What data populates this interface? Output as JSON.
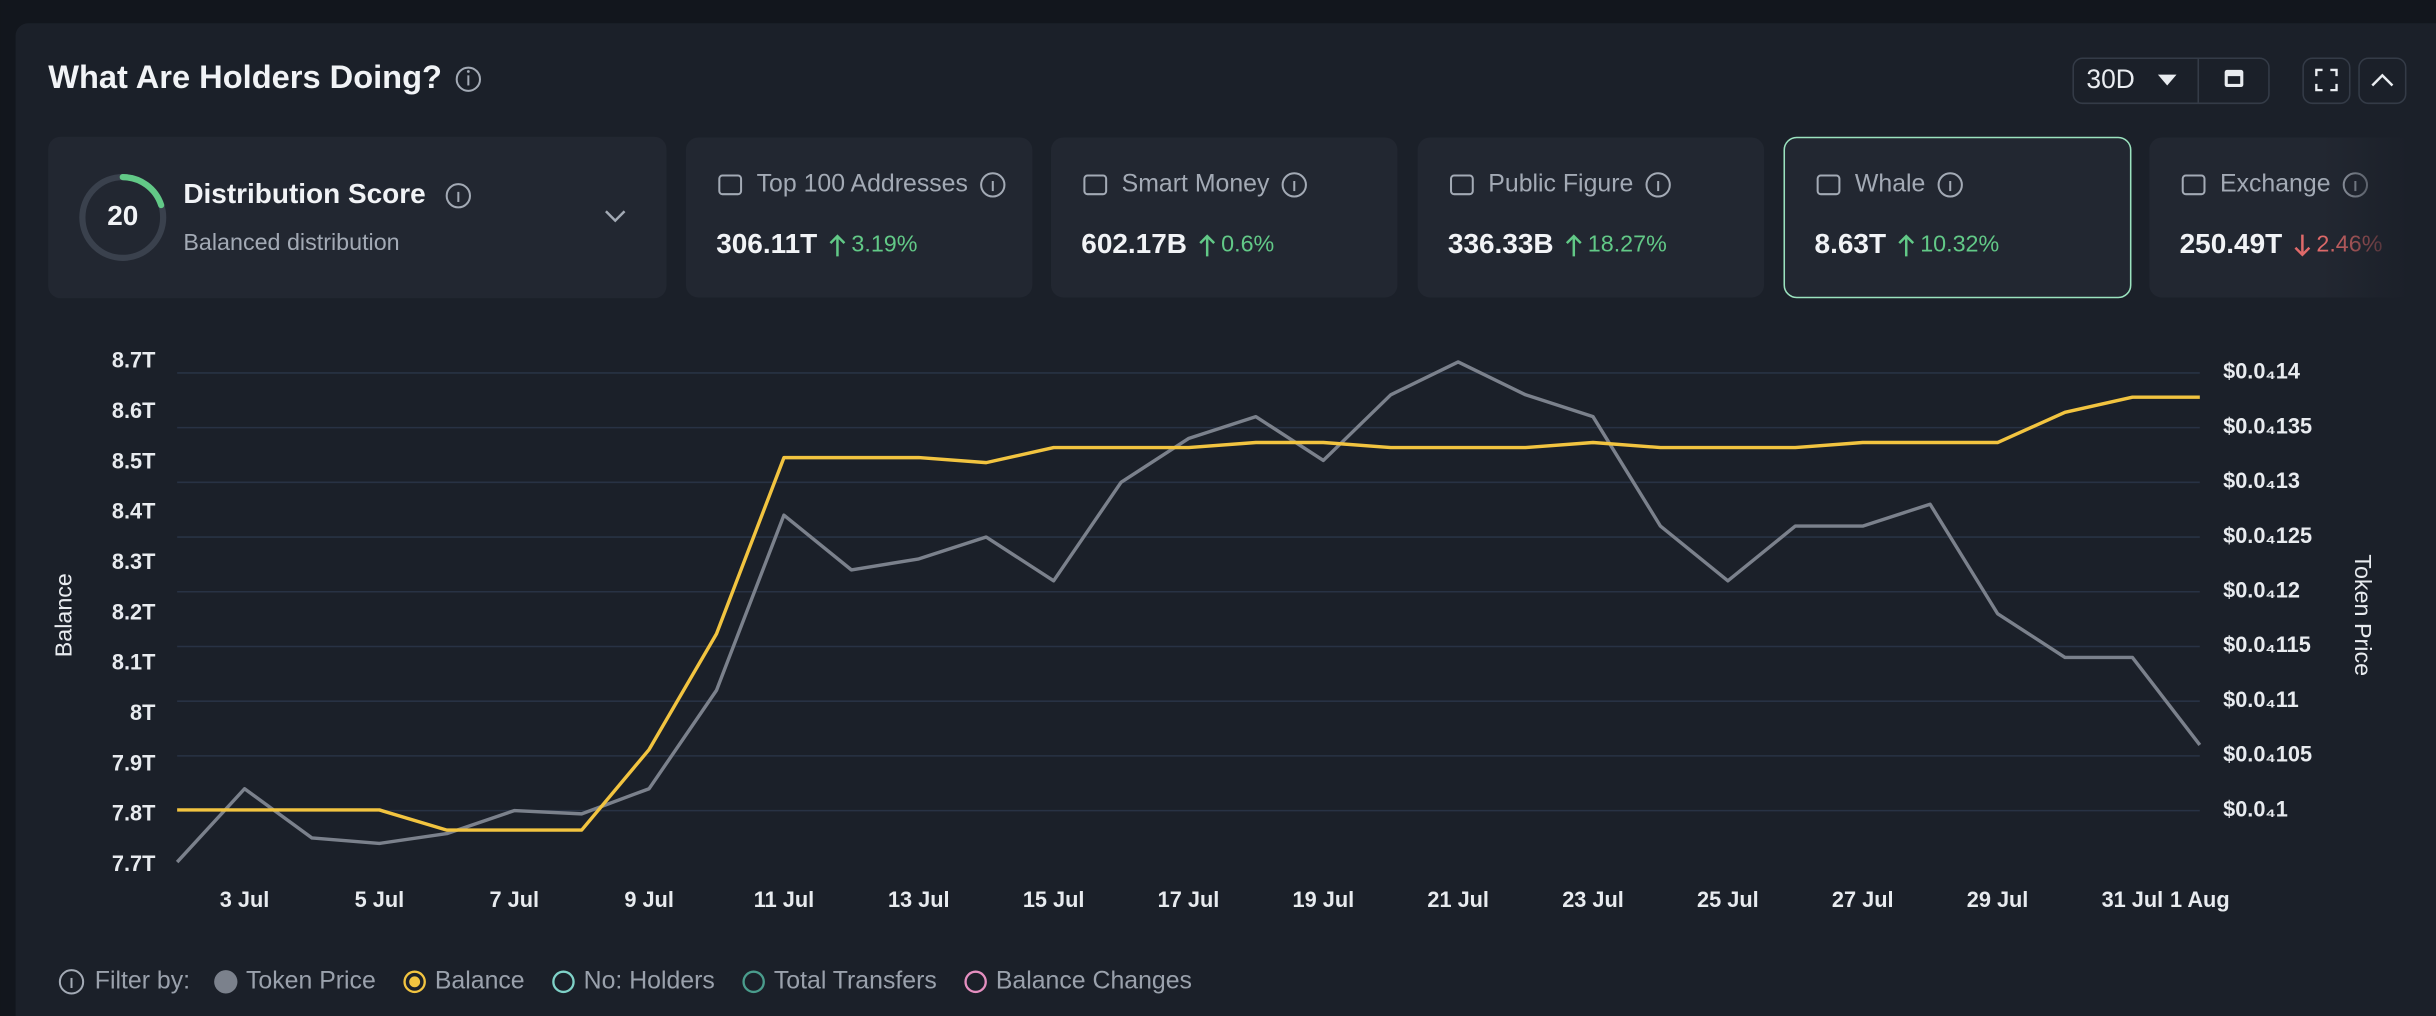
{
  "header": {
    "title": "What Are Holders Doing?",
    "period": "30D"
  },
  "score_card": {
    "score": "20",
    "title": "Distribution Score",
    "subtitle": "Balanced distribution"
  },
  "cards": [
    {
      "label": "Top 100 Addresses",
      "value": "306.11T",
      "change": "3.19%",
      "direction": "up"
    },
    {
      "label": "Smart Money",
      "value": "602.17B",
      "change": "0.6%",
      "direction": "up"
    },
    {
      "label": "Public Figure",
      "value": "336.33B",
      "change": "18.27%",
      "direction": "up"
    },
    {
      "label": "Whale",
      "value": "8.63T",
      "change": "10.32%",
      "direction": "up",
      "selected": true
    },
    {
      "label": "Exchange",
      "value": "250.49T",
      "change": "2.46%",
      "direction": "down"
    }
  ],
  "chart_data": {
    "type": "line",
    "y_label": "Balance",
    "y2_label": "Token Price",
    "categories": [
      null,
      "3 Jul",
      null,
      "5 Jul",
      null,
      "7 Jul",
      null,
      "9 Jul",
      null,
      "11 Jul",
      null,
      "13 Jul",
      null,
      "15 Jul",
      null,
      "17 Jul",
      null,
      "19 Jul",
      null,
      "21 Jul",
      null,
      "23 Jul",
      null,
      "25 Jul",
      null,
      "27 Jul",
      null,
      "29 Jul",
      null,
      "31 Jul",
      "1 Aug"
    ],
    "series": [
      {
        "name": "Token Price",
        "color": "#7b818c",
        "axis": "y2",
        "values": [
          9.53e-06,
          1.02e-05,
          9.75e-06,
          9.7e-06,
          9.79e-06,
          1e-05,
          9.97e-06,
          1.02e-05,
          1.11e-05,
          1.27e-05,
          1.22e-05,
          1.23e-05,
          1.25e-05,
          1.21e-05,
          1.3e-05,
          1.34e-05,
          1.36e-05,
          1.32e-05,
          1.38e-05,
          1.41e-05,
          1.38e-05,
          1.36e-05,
          1.26e-05,
          1.21e-05,
          1.26e-05,
          1.26e-05,
          1.28e-05,
          1.18e-05,
          1.14e-05,
          1.14e-05,
          1.06e-05
        ]
      },
      {
        "name": "Balance",
        "color": "#f2c440",
        "active": true,
        "values": [
          7810000000000,
          7810000000000,
          7810000000000,
          7810000000000,
          7770000000000,
          7770000000000,
          7770000000000,
          7930000000000,
          8160000000000,
          8510000000000,
          8510000000000,
          8510000000000,
          8500000000000,
          8530000000000,
          8530000000000,
          8530000000000,
          8540000000000,
          8540000000000,
          8530000000000,
          8530000000000,
          8530000000000,
          8540000000000,
          8530000000000,
          8530000000000,
          8530000000000,
          8540000000000,
          8540000000000,
          8540000000000,
          8600000000000,
          8630000000000,
          8630000000000
        ]
      }
    ],
    "ylim": [
      7700000000000,
      8700000000000
    ],
    "yticks": [
      {
        "value": 7700000000000,
        "label": "7.7T"
      },
      {
        "value": 7800000000000,
        "label": "7.8T"
      },
      {
        "value": 7900000000000,
        "label": "7.9T"
      },
      {
        "value": 8000000000000,
        "label": "8T"
      },
      {
        "value": 8100000000000,
        "label": "8.1T"
      },
      {
        "value": 8200000000000,
        "label": "8.2T"
      },
      {
        "value": 8300000000000,
        "label": "8.3T"
      },
      {
        "value": 8400000000000,
        "label": "8.4T"
      },
      {
        "value": 8500000000000,
        "label": "8.5T"
      },
      {
        "value": 8600000000000,
        "label": "8.6T"
      },
      {
        "value": 8700000000000,
        "label": "8.7T"
      }
    ],
    "y2lim": [
      9.5e-06,
      1.41e-05
    ],
    "y2ticks": [
      {
        "value": 1e-05,
        "label": "$0.0₄1"
      },
      {
        "value": 1.05e-05,
        "label": "$0.0₄105"
      },
      {
        "value": 1.1e-05,
        "label": "$0.0₄11"
      },
      {
        "value": 1.15e-05,
        "label": "$0.0₄115"
      },
      {
        "value": 1.2e-05,
        "label": "$0.0₄12"
      },
      {
        "value": 1.25e-05,
        "label": "$0.0₄125"
      },
      {
        "value": 1.3e-05,
        "label": "$0.0₄13"
      },
      {
        "value": 1.35e-05,
        "label": "$0.0₄135"
      },
      {
        "value": 1.4e-05,
        "label": "$0.0₄14"
      }
    ],
    "grid": true,
    "legend_title": "Filter by:"
  },
  "filter_options": [
    {
      "label": "No: Holders",
      "color": "#7fd1c7"
    },
    {
      "label": "Total Transfers",
      "color": "#4a9c8c"
    },
    {
      "label": "Balance Changes",
      "color": "#e58fc0"
    }
  ]
}
